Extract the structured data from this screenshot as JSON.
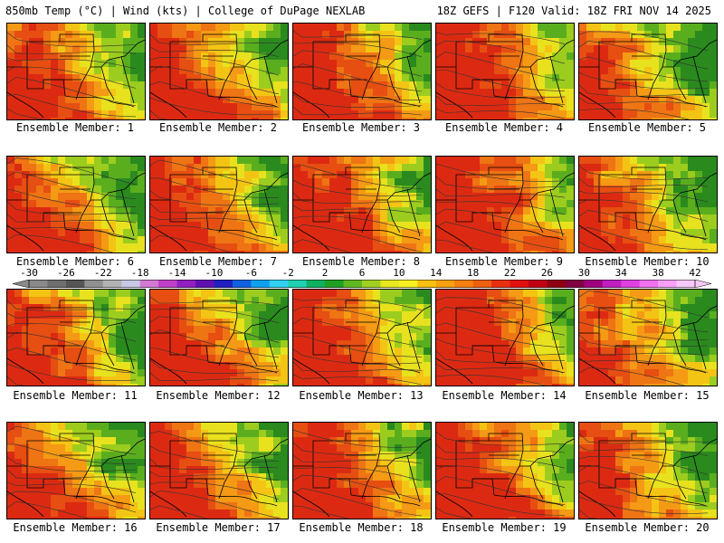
{
  "header": {
    "left": "850mb Temp (°C) | Wind (kts) | College of DuPage NEXLAB",
    "right": "18Z GEFS | F120 Valid: 18Z FRI NOV 14 2025"
  },
  "members": [
    {
      "label": "Ensemble Member: 1"
    },
    {
      "label": "Ensemble Member: 2"
    },
    {
      "label": "Ensemble Member: 3"
    },
    {
      "label": "Ensemble Member: 4"
    },
    {
      "label": "Ensemble Member: 5"
    },
    {
      "label": "Ensemble Member: 6"
    },
    {
      "label": "Ensemble Member: 7"
    },
    {
      "label": "Ensemble Member: 8"
    },
    {
      "label": "Ensemble Member: 9"
    },
    {
      "label": "Ensemble Member: 10"
    },
    {
      "label": "Ensemble Member: 11"
    },
    {
      "label": "Ensemble Member: 12"
    },
    {
      "label": "Ensemble Member: 13"
    },
    {
      "label": "Ensemble Member: 14"
    },
    {
      "label": "Ensemble Member: 15"
    },
    {
      "label": "Ensemble Member: 16"
    },
    {
      "label": "Ensemble Member: 17"
    },
    {
      "label": "Ensemble Member: 18"
    },
    {
      "label": "Ensemble Member: 19"
    },
    {
      "label": "Ensemble Member: 20"
    }
  ],
  "colorbar": {
    "ticks": [
      "-30",
      "-26",
      "-22",
      "-18",
      "-14",
      "-10",
      "-6",
      "-2",
      "2",
      "6",
      "10",
      "14",
      "18",
      "22",
      "26",
      "30",
      "34",
      "38",
      "42"
    ],
    "colors": [
      "#8a8a8a",
      "#6f6f6f",
      "#555555",
      "#909090",
      "#b3b3b3",
      "#c8c8e6",
      "#d27ad2",
      "#c040c8",
      "#9020c0",
      "#6010b0",
      "#2020c0",
      "#1060e0",
      "#10a0f0",
      "#30d0f0",
      "#20d0b0",
      "#10b060",
      "#20a020",
      "#60b820",
      "#a0d020",
      "#e8e820",
      "#f8f020",
      "#f8c010",
      "#f8a010",
      "#f88010",
      "#f06010",
      "#e83010",
      "#e01010",
      "#c00010",
      "#900010",
      "#800040",
      "#a00080",
      "#c020c0",
      "#e040e0",
      "#f070f0",
      "#f8a0f8",
      "#f8c8f8"
    ]
  },
  "palette": {
    "green_dark": "#2a8a1e",
    "green": "#5aae1e",
    "lime": "#9ccc1e",
    "yellow": "#e8e21e",
    "gold": "#f4c414",
    "orange": "#f49a14",
    "dark_orange": "#ee7414",
    "red_orange": "#e64e12",
    "red": "#dc2a12"
  }
}
